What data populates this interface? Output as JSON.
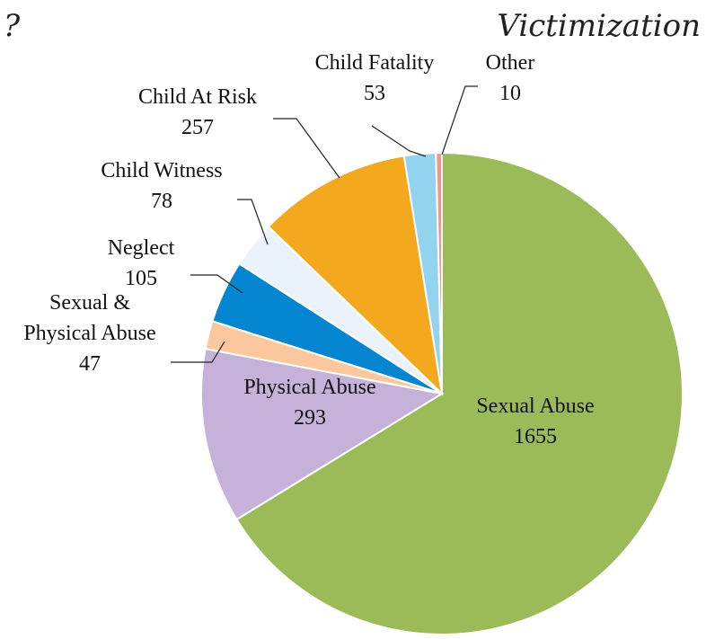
{
  "header": {
    "title_fragment": "?",
    "title": "Victimization"
  },
  "chart_data": {
    "type": "pie",
    "start_angle": "12 o'clock",
    "direction": "clockwise",
    "slices": [
      {
        "label": "Sexual Abuse",
        "value": 1655,
        "color": "#9BBB59",
        "lines": [
          "Sexual Abuse"
        ]
      },
      {
        "label": "Physical Abuse",
        "value": 293,
        "color": "#C6B2D9",
        "lines": [
          "Physical Abuse"
        ]
      },
      {
        "label": "Sexual & Physical Abuse",
        "value": 47,
        "color": "#FBC89E",
        "lines": [
          "Sexual &",
          "Physical Abuse"
        ]
      },
      {
        "label": "Neglect",
        "value": 105,
        "color": "#0386CF",
        "lines": [
          "Neglect"
        ]
      },
      {
        "label": "Child Witness",
        "value": 78,
        "color": "#EAF3FB",
        "lines": [
          "Child Witness"
        ]
      },
      {
        "label": "Child At Risk",
        "value": 257,
        "color": "#F4A81E",
        "lines": [
          "Child At Risk"
        ]
      },
      {
        "label": "Child Fatality",
        "value": 53,
        "color": "#92D3F0",
        "lines": [
          "Child Fatality"
        ]
      },
      {
        "label": "Other",
        "value": 10,
        "color": "#F2948E",
        "lines": [
          "Other"
        ]
      }
    ]
  }
}
